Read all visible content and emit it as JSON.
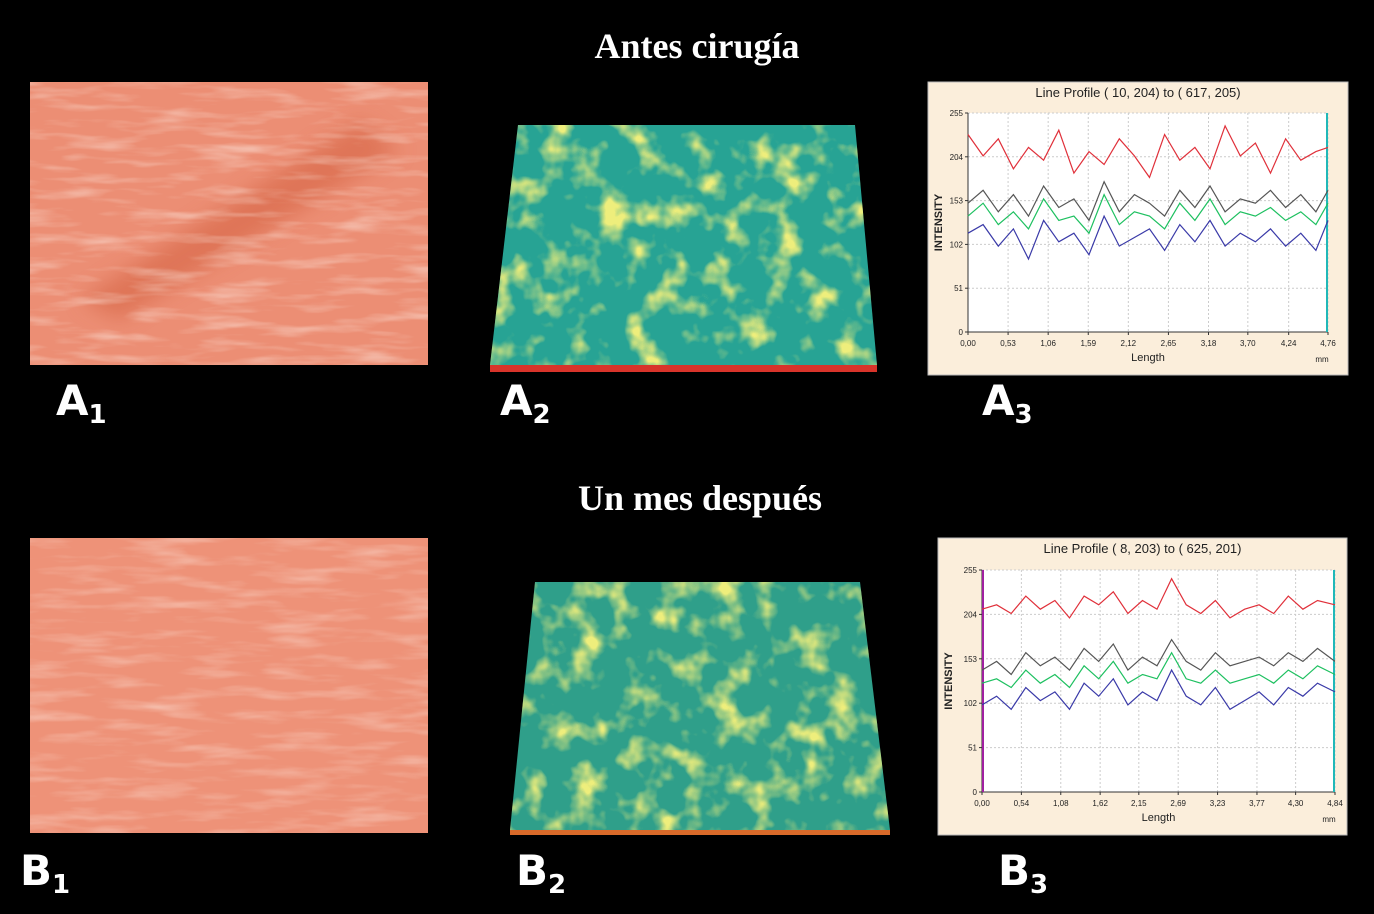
{
  "sections": [
    {
      "title": "Antes cirugía",
      "panels": [
        {
          "letter": "A",
          "sub": "1"
        },
        {
          "letter": "A",
          "sub": "2"
        },
        {
          "letter": "A",
          "sub": "3"
        }
      ],
      "chart": {
        "type": "line",
        "title": "Line Profile ( 10, 204) to ( 617, 205)",
        "xlabel": "Length",
        "ylabel": "INTENSITY",
        "unit": "mm",
        "xlim": [
          0,
          4.76
        ],
        "ylim": [
          0,
          255
        ],
        "xticks": [
          {
            "value": 0,
            "label": "0,00"
          },
          {
            "value": 0.53,
            "label": "0,53"
          },
          {
            "value": 1.06,
            "label": "1,06"
          },
          {
            "value": 1.59,
            "label": "1,59"
          },
          {
            "value": 2.12,
            "label": "2,12"
          },
          {
            "value": 2.65,
            "label": "2,65"
          },
          {
            "value": 3.18,
            "label": "3,18"
          },
          {
            "value": 3.7,
            "label": "3,70"
          },
          {
            "value": 4.24,
            "label": "4,24"
          },
          {
            "value": 4.76,
            "label": "4,76"
          }
        ],
        "yticks": [
          0,
          51,
          102,
          153,
          204,
          255
        ],
        "grid": true,
        "x": [
          0,
          0.2,
          0.4,
          0.6,
          0.8,
          1.0,
          1.2,
          1.4,
          1.6,
          1.8,
          2.0,
          2.2,
          2.4,
          2.6,
          2.8,
          3.0,
          3.2,
          3.4,
          3.6,
          3.8,
          4.0,
          4.2,
          4.4,
          4.6,
          4.76
        ],
        "series": [
          {
            "color": "#e0303a",
            "values": [
              230,
              205,
              225,
              190,
              215,
              200,
              235,
              185,
              210,
              195,
              225,
              205,
              180,
              230,
              200,
              215,
              190,
              240,
              205,
              220,
              185,
              225,
              200,
              210,
              215
            ]
          },
          {
            "color": "#555555",
            "values": [
              150,
              165,
              140,
              160,
              135,
              170,
              145,
              155,
              130,
              175,
              140,
              160,
              150,
              135,
              165,
              145,
              170,
              140,
              155,
              150,
              165,
              145,
              160,
              140,
              165
            ]
          },
          {
            "color": "#1ec060",
            "values": [
              135,
              150,
              125,
              140,
              120,
              155,
              130,
              135,
              115,
              160,
              125,
              140,
              135,
              120,
              150,
              130,
              155,
              125,
              140,
              135,
              145,
              130,
              140,
              125,
              150
            ]
          },
          {
            "color": "#3a3aa8",
            "values": [
              115,
              125,
              100,
              120,
              85,
              130,
              105,
              115,
              90,
              135,
              100,
              110,
              120,
              95,
              125,
              105,
              130,
              100,
              115,
              105,
              120,
              100,
              115,
              95,
              130
            ]
          }
        ]
      }
    },
    {
      "title": "Un mes después",
      "panels": [
        {
          "letter": "B",
          "sub": "1"
        },
        {
          "letter": "B",
          "sub": "2"
        },
        {
          "letter": "B",
          "sub": "3"
        }
      ],
      "chart": {
        "type": "line",
        "title": "Line Profile ( 8, 203) to ( 625, 201)",
        "xlabel": "Length",
        "ylabel": "INTENSITY",
        "unit": "mm",
        "xlim": [
          0,
          4.84
        ],
        "ylim": [
          0,
          255
        ],
        "xticks": [
          {
            "value": 0,
            "label": "0,00"
          },
          {
            "value": 0.54,
            "label": "0,54"
          },
          {
            "value": 1.08,
            "label": "1,08"
          },
          {
            "value": 1.62,
            "label": "1,62"
          },
          {
            "value": 2.15,
            "label": "2,15"
          },
          {
            "value": 2.69,
            "label": "2,69"
          },
          {
            "value": 3.23,
            "label": "3,23"
          },
          {
            "value": 3.77,
            "label": "3,77"
          },
          {
            "value": 4.3,
            "label": "4,30"
          },
          {
            "value": 4.84,
            "label": "4,84"
          }
        ],
        "yticks": [
          0,
          51,
          102,
          153,
          204,
          255
        ],
        "grid": true,
        "x": [
          0,
          0.2,
          0.4,
          0.6,
          0.8,
          1.0,
          1.2,
          1.4,
          1.6,
          1.8,
          2.0,
          2.2,
          2.4,
          2.6,
          2.8,
          3.0,
          3.2,
          3.4,
          3.6,
          3.8,
          4.0,
          4.2,
          4.4,
          4.6,
          4.84
        ],
        "series": [
          {
            "color": "#e0303a",
            "values": [
              210,
              215,
              205,
              225,
              210,
              220,
              200,
              225,
              215,
              230,
              205,
              220,
              210,
              245,
              215,
              205,
              220,
              200,
              210,
              215,
              205,
              225,
              210,
              220,
              215
            ]
          },
          {
            "color": "#555555",
            "values": [
              140,
              150,
              135,
              160,
              145,
              155,
              140,
              165,
              150,
              170,
              140,
              155,
              145,
              175,
              150,
              140,
              160,
              145,
              150,
              155,
              145,
              160,
              150,
              165,
              150
            ]
          },
          {
            "color": "#1ec060",
            "values": [
              125,
              130,
              120,
              140,
              125,
              135,
              120,
              145,
              130,
              150,
              125,
              135,
              130,
              160,
              130,
              125,
              140,
              125,
              130,
              135,
              125,
              140,
              130,
              145,
              135
            ]
          },
          {
            "color": "#3a3aa8",
            "values": [
              100,
              110,
              95,
              120,
              105,
              115,
              95,
              125,
              110,
              130,
              100,
              115,
              105,
              140,
              110,
              100,
              120,
              95,
              105,
              115,
              100,
              120,
              110,
              125,
              115
            ]
          }
        ]
      }
    }
  ]
}
